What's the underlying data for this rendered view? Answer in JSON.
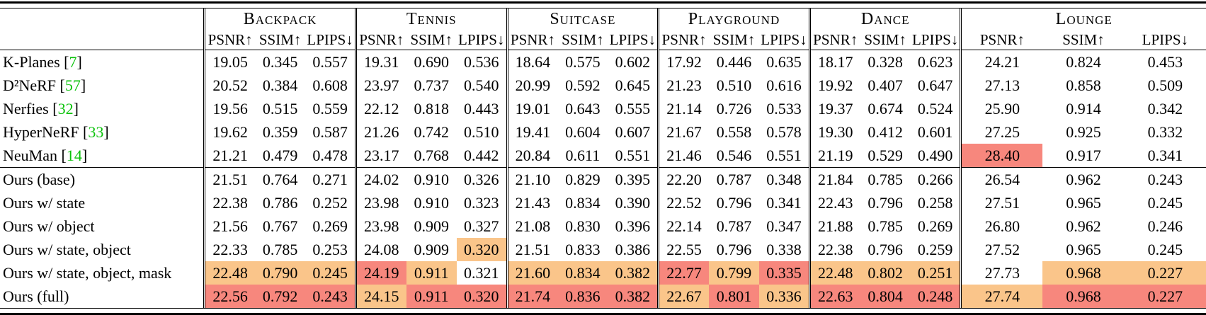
{
  "colors": {
    "highlight_best": "#f7877d",
    "highlight_second": "#fac58a",
    "citation_green": "#0bc20b"
  },
  "header": {
    "scenes": [
      "Backpack",
      "Tennis",
      "Suitcase",
      "Playground",
      "Dance",
      "Lounge"
    ],
    "metrics": [
      "PSNR↑",
      "SSIM↑",
      "LPIPS↓"
    ]
  },
  "legend": {
    "best_marker": "b",
    "second_best_marker": "s"
  },
  "rows_baselines": [
    {
      "method": "K-Planes",
      "cite": "7",
      "cells": [
        [
          "19.05",
          ""
        ],
        [
          "0.345",
          ""
        ],
        [
          "0.557",
          ""
        ],
        [
          "19.31",
          ""
        ],
        [
          "0.690",
          ""
        ],
        [
          "0.536",
          ""
        ],
        [
          "18.64",
          ""
        ],
        [
          "0.575",
          ""
        ],
        [
          "0.602",
          ""
        ],
        [
          "17.92",
          ""
        ],
        [
          "0.446",
          ""
        ],
        [
          "0.635",
          ""
        ],
        [
          "18.17",
          ""
        ],
        [
          "0.328",
          ""
        ],
        [
          "0.623",
          ""
        ],
        [
          "24.21",
          ""
        ],
        [
          "0.824",
          ""
        ],
        [
          "0.453",
          ""
        ]
      ]
    },
    {
      "method": "D²NeRF",
      "cite": "57",
      "cells": [
        [
          "20.52",
          ""
        ],
        [
          "0.384",
          ""
        ],
        [
          "0.608",
          ""
        ],
        [
          "23.97",
          ""
        ],
        [
          "0.737",
          ""
        ],
        [
          "0.540",
          ""
        ],
        [
          "20.99",
          ""
        ],
        [
          "0.592",
          ""
        ],
        [
          "0.645",
          ""
        ],
        [
          "21.23",
          ""
        ],
        [
          "0.510",
          ""
        ],
        [
          "0.616",
          ""
        ],
        [
          "19.92",
          ""
        ],
        [
          "0.407",
          ""
        ],
        [
          "0.647",
          ""
        ],
        [
          "27.13",
          ""
        ],
        [
          "0.858",
          ""
        ],
        [
          "0.509",
          ""
        ]
      ]
    },
    {
      "method": "Nerfies",
      "cite": "32",
      "cells": [
        [
          "19.56",
          ""
        ],
        [
          "0.515",
          ""
        ],
        [
          "0.559",
          ""
        ],
        [
          "22.12",
          ""
        ],
        [
          "0.818",
          ""
        ],
        [
          "0.443",
          ""
        ],
        [
          "19.01",
          ""
        ],
        [
          "0.643",
          ""
        ],
        [
          "0.555",
          ""
        ],
        [
          "21.14",
          ""
        ],
        [
          "0.726",
          ""
        ],
        [
          "0.533",
          ""
        ],
        [
          "19.37",
          ""
        ],
        [
          "0.674",
          ""
        ],
        [
          "0.524",
          ""
        ],
        [
          "25.90",
          ""
        ],
        [
          "0.914",
          ""
        ],
        [
          "0.342",
          ""
        ]
      ]
    },
    {
      "method": "HyperNeRF",
      "cite": "33",
      "cells": [
        [
          "19.62",
          ""
        ],
        [
          "0.359",
          ""
        ],
        [
          "0.587",
          ""
        ],
        [
          "21.26",
          ""
        ],
        [
          "0.742",
          ""
        ],
        [
          "0.510",
          ""
        ],
        [
          "19.41",
          ""
        ],
        [
          "0.604",
          ""
        ],
        [
          "0.607",
          ""
        ],
        [
          "21.67",
          ""
        ],
        [
          "0.558",
          ""
        ],
        [
          "0.578",
          ""
        ],
        [
          "19.30",
          ""
        ],
        [
          "0.412",
          ""
        ],
        [
          "0.601",
          ""
        ],
        [
          "27.25",
          ""
        ],
        [
          "0.925",
          ""
        ],
        [
          "0.332",
          ""
        ]
      ]
    },
    {
      "method": "NeuMan",
      "cite": "14",
      "cells": [
        [
          "21.21",
          ""
        ],
        [
          "0.479",
          ""
        ],
        [
          "0.478",
          ""
        ],
        [
          "23.17",
          ""
        ],
        [
          "0.768",
          ""
        ],
        [
          "0.442",
          ""
        ],
        [
          "20.84",
          ""
        ],
        [
          "0.611",
          ""
        ],
        [
          "0.551",
          ""
        ],
        [
          "21.46",
          ""
        ],
        [
          "0.546",
          ""
        ],
        [
          "0.551",
          ""
        ],
        [
          "21.19",
          ""
        ],
        [
          "0.529",
          ""
        ],
        [
          "0.490",
          ""
        ],
        [
          "28.40",
          "b"
        ],
        [
          "0.917",
          ""
        ],
        [
          "0.341",
          ""
        ]
      ]
    }
  ],
  "rows_ours": [
    {
      "method": "Ours (base)",
      "cite": "",
      "cells": [
        [
          "21.51",
          ""
        ],
        [
          "0.764",
          ""
        ],
        [
          "0.271",
          ""
        ],
        [
          "24.02",
          ""
        ],
        [
          "0.910",
          ""
        ],
        [
          "0.326",
          ""
        ],
        [
          "21.10",
          ""
        ],
        [
          "0.829",
          ""
        ],
        [
          "0.395",
          ""
        ],
        [
          "22.20",
          ""
        ],
        [
          "0.787",
          ""
        ],
        [
          "0.348",
          ""
        ],
        [
          "21.84",
          ""
        ],
        [
          "0.785",
          ""
        ],
        [
          "0.266",
          ""
        ],
        [
          "26.54",
          ""
        ],
        [
          "0.962",
          ""
        ],
        [
          "0.243",
          ""
        ]
      ]
    },
    {
      "method": "Ours w/ state",
      "cite": "",
      "cells": [
        [
          "22.38",
          ""
        ],
        [
          "0.786",
          ""
        ],
        [
          "0.252",
          ""
        ],
        [
          "23.98",
          ""
        ],
        [
          "0.910",
          ""
        ],
        [
          "0.323",
          ""
        ],
        [
          "21.43",
          ""
        ],
        [
          "0.834",
          ""
        ],
        [
          "0.390",
          ""
        ],
        [
          "22.52",
          ""
        ],
        [
          "0.796",
          ""
        ],
        [
          "0.341",
          ""
        ],
        [
          "22.43",
          ""
        ],
        [
          "0.796",
          ""
        ],
        [
          "0.258",
          ""
        ],
        [
          "27.51",
          ""
        ],
        [
          "0.965",
          ""
        ],
        [
          "0.245",
          ""
        ]
      ]
    },
    {
      "method": "Ours w/ object",
      "cite": "",
      "cells": [
        [
          "21.56",
          ""
        ],
        [
          "0.767",
          ""
        ],
        [
          "0.269",
          ""
        ],
        [
          "23.98",
          ""
        ],
        [
          "0.909",
          ""
        ],
        [
          "0.327",
          ""
        ],
        [
          "21.08",
          ""
        ],
        [
          "0.830",
          ""
        ],
        [
          "0.396",
          ""
        ],
        [
          "22.14",
          ""
        ],
        [
          "0.787",
          ""
        ],
        [
          "0.347",
          ""
        ],
        [
          "21.88",
          ""
        ],
        [
          "0.785",
          ""
        ],
        [
          "0.269",
          ""
        ],
        [
          "26.80",
          ""
        ],
        [
          "0.962",
          ""
        ],
        [
          "0.246",
          ""
        ]
      ]
    },
    {
      "method": "Ours w/ state, object",
      "cite": "",
      "cells": [
        [
          "22.33",
          ""
        ],
        [
          "0.785",
          ""
        ],
        [
          "0.253",
          ""
        ],
        [
          "24.08",
          ""
        ],
        [
          "0.909",
          ""
        ],
        [
          "0.320",
          "s"
        ],
        [
          "21.51",
          ""
        ],
        [
          "0.833",
          ""
        ],
        [
          "0.386",
          ""
        ],
        [
          "22.55",
          ""
        ],
        [
          "0.796",
          ""
        ],
        [
          "0.338",
          ""
        ],
        [
          "22.38",
          ""
        ],
        [
          "0.796",
          ""
        ],
        [
          "0.259",
          ""
        ],
        [
          "27.52",
          ""
        ],
        [
          "0.965",
          ""
        ],
        [
          "0.245",
          ""
        ]
      ]
    },
    {
      "method": "Ours w/ state, object, mask",
      "cite": "",
      "cells": [
        [
          "22.48",
          "s"
        ],
        [
          "0.790",
          "s"
        ],
        [
          "0.245",
          "s"
        ],
        [
          "24.19",
          "b"
        ],
        [
          "0.911",
          "s"
        ],
        [
          "0.321",
          ""
        ],
        [
          "21.60",
          "s"
        ],
        [
          "0.834",
          "s"
        ],
        [
          "0.382",
          "s"
        ],
        [
          "22.77",
          "b"
        ],
        [
          "0.799",
          "s"
        ],
        [
          "0.335",
          "b"
        ],
        [
          "22.48",
          "s"
        ],
        [
          "0.802",
          "s"
        ],
        [
          "0.251",
          "s"
        ],
        [
          "27.73",
          ""
        ],
        [
          "0.968",
          "s"
        ],
        [
          "0.227",
          "s"
        ]
      ]
    },
    {
      "method": "Ours (full)",
      "cite": "",
      "cells": [
        [
          "22.56",
          "b"
        ],
        [
          "0.792",
          "b"
        ],
        [
          "0.243",
          "b"
        ],
        [
          "24.15",
          "s"
        ],
        [
          "0.911",
          "b"
        ],
        [
          "0.320",
          "b"
        ],
        [
          "21.74",
          "b"
        ],
        [
          "0.836",
          "b"
        ],
        [
          "0.382",
          "b"
        ],
        [
          "22.67",
          "s"
        ],
        [
          "0.801",
          "b"
        ],
        [
          "0.336",
          "s"
        ],
        [
          "22.63",
          "b"
        ],
        [
          "0.804",
          "b"
        ],
        [
          "0.248",
          "b"
        ],
        [
          "27.74",
          "s"
        ],
        [
          "0.968",
          "b"
        ],
        [
          "0.227",
          "b"
        ]
      ]
    }
  ]
}
